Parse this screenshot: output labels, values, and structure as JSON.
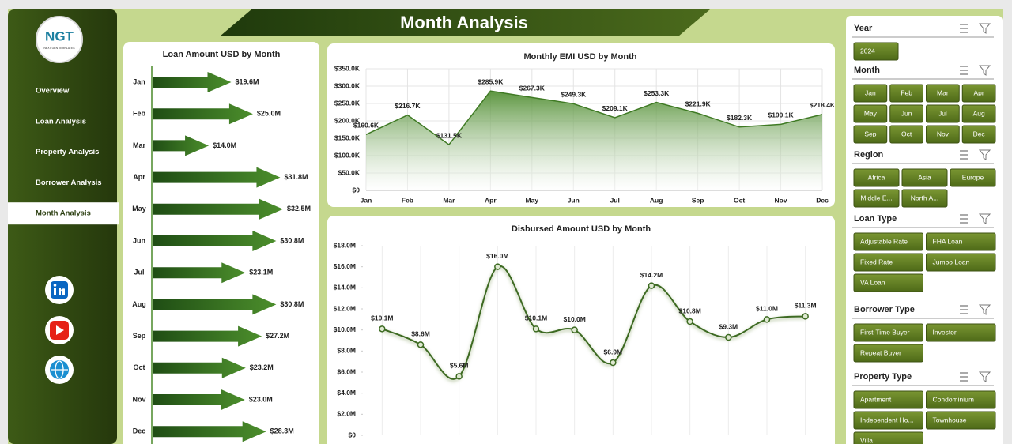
{
  "sidebar": {
    "logo": "NGT",
    "logo_subtitle": "NEXT GEN TEMPLATES",
    "menu": [
      "Overview",
      "Loan Analysis",
      "Property  Analysis",
      "Borrower Analysis",
      "Month Analysis"
    ],
    "selected_item": 4
  },
  "header": {
    "title": "Month Analysis"
  },
  "chart_data": [
    {
      "type": "arrow-bar",
      "title": "Loan Amount USD by Month",
      "categories": [
        "Jan",
        "Feb",
        "Mar",
        "Apr",
        "May",
        "Jun",
        "Jul",
        "Aug",
        "Sep",
        "Oct",
        "Nov",
        "Dec"
      ],
      "values": [
        19.6,
        25.0,
        14.0,
        31.8,
        32.5,
        30.8,
        23.1,
        30.8,
        27.2,
        23.2,
        23.0,
        28.3
      ],
      "value_labels": [
        "$19.6M",
        "$25.0M",
        "$14.0M",
        "$31.8M",
        "$32.5M",
        "$30.8M",
        "$23.1M",
        "$30.8M",
        "$27.2M",
        "$23.2M",
        "$23.0M",
        "$28.3M"
      ],
      "color": "#2f6a1e"
    },
    {
      "type": "area",
      "title": "Monthly EMI USD by Month",
      "categories": [
        "Jan",
        "Feb",
        "Mar",
        "Apr",
        "May",
        "Jun",
        "Jul",
        "Aug",
        "Sep",
        "Oct",
        "Nov",
        "Dec"
      ],
      "values": [
        160600,
        216700,
        131500,
        285900,
        267300,
        249300,
        209100,
        253300,
        221900,
        182300,
        190100,
        218400
      ],
      "value_labels": [
        "$160.6K",
        "$216.7K",
        "$131.5K",
        "$285.9K",
        "$267.3K",
        "$249.3K",
        "$209.1K",
        "$253.3K",
        "$221.9K",
        "$182.3K",
        "$190.1K",
        "$218.4K"
      ],
      "color": "#3f7a24",
      "ylim": [
        0,
        350000
      ],
      "yticks": [
        {
          "value": 0,
          "label": "$0"
        },
        {
          "value": 50000,
          "label": "$50.0K"
        },
        {
          "value": 100000,
          "label": "$100.0K"
        },
        {
          "value": 150000,
          "label": "$150.0K"
        },
        {
          "value": 200000,
          "label": "$200.0K"
        },
        {
          "value": 250000,
          "label": "$250.0K"
        },
        {
          "value": 300000,
          "label": "$300.0K"
        },
        {
          "value": 350000,
          "label": "$350.0K"
        }
      ],
      "grid": true
    },
    {
      "type": "line",
      "title": "Disbursed Amount USD by Month",
      "categories": [
        null,
        null,
        null,
        null,
        null,
        null,
        null,
        null,
        null,
        null,
        null,
        null
      ],
      "values": [
        10100000,
        8600000,
        5600000,
        16000000,
        10100000,
        10000000,
        6900000,
        14200000,
        10800000,
        9300000,
        11000000,
        11300000
      ],
      "value_labels": [
        "$10.1M",
        "$8.6M",
        "$5.6M",
        "$16.0M",
        "$10.1M",
        "$10.0M",
        "$6.9M",
        "$14.2M",
        "$10.8M",
        "$9.3M",
        "$11.0M",
        "$11.3M"
      ],
      "color": "#3d6b22",
      "ylim": [
        0,
        18000000
      ],
      "yticks": [
        {
          "value": 0,
          "label": "$0"
        },
        {
          "value": 2000000,
          "label": "$2.0M"
        },
        {
          "value": 4000000,
          "label": "$4.0M"
        },
        {
          "value": 6000000,
          "label": "$6.0M"
        },
        {
          "value": 8000000,
          "label": "$8.0M"
        },
        {
          "value": 10000000,
          "label": "$10.0M"
        },
        {
          "value": 12000000,
          "label": "$12.0M"
        },
        {
          "value": 14000000,
          "label": "$14.0M"
        },
        {
          "value": 16000000,
          "label": "$16.0M"
        },
        {
          "value": 18000000,
          "label": "$18.0M"
        }
      ],
      "grid": true
    }
  ],
  "slicers": [
    {
      "title": "Year",
      "columns": 1,
      "items": [
        "2024"
      ]
    },
    {
      "title": "Month",
      "columns": 4,
      "items": [
        "Jan",
        "Feb",
        "Mar",
        "Apr",
        "May",
        "Jun",
        "Jul",
        "Aug",
        "Sep",
        "Oct",
        "Nov",
        "Dec"
      ]
    },
    {
      "title": "Region",
      "columns": 3,
      "items": [
        "Africa",
        "Asia",
        "Europe",
        "Middle E...",
        "North A..."
      ]
    },
    {
      "title": "Loan Type",
      "columns": 2,
      "items": [
        "Adjustable Rate",
        "FHA Loan",
        "Fixed Rate",
        "Jumbo Loan",
        "VA Loan"
      ]
    },
    {
      "title": "Borrower Type",
      "columns": 2,
      "items": [
        "First-Time Buyer",
        "Investor",
        "Repeat Buyer"
      ]
    },
    {
      "title": "Property Type",
      "columns": 2,
      "items": [
        "Apartment",
        "Condominium",
        "Independent Ho...",
        "Townhouse",
        "Villa"
      ]
    }
  ]
}
